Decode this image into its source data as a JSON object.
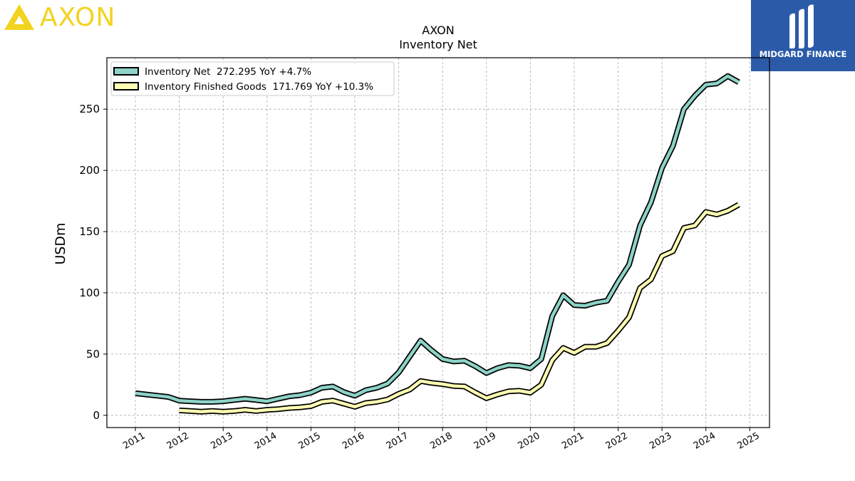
{
  "brand": {
    "left_logo_text": "AXON",
    "right_logo_text": "MIDGARD FINANCE",
    "left_color": "#f2d31f",
    "right_bg": "#2b5ba8"
  },
  "chart_data": {
    "type": "line",
    "title": "AXON",
    "subtitle": "Inventory Net",
    "ylabel": "USDm",
    "xlabel": "",
    "ylim": [
      -10,
      292
    ],
    "xlim": [
      2010.35,
      2025.45
    ],
    "y_ticks": [
      0,
      50,
      100,
      150,
      200,
      250
    ],
    "x_ticks": [
      "2011",
      "2012",
      "2013",
      "2014",
      "2015",
      "2016",
      "2017",
      "2018",
      "2019",
      "2020",
      "2021",
      "2022",
      "2023",
      "2024",
      "2025"
    ],
    "grid": true,
    "legend_position": "top-left",
    "series": [
      {
        "name": "Inventory Net  272.295 YoY +4.7%",
        "color": "#8dd3c7",
        "x": [
          2011.0,
          2011.25,
          2011.5,
          2011.75,
          2012.0,
          2012.25,
          2012.5,
          2012.75,
          2013.0,
          2013.25,
          2013.5,
          2013.75,
          2014.0,
          2014.25,
          2014.5,
          2014.75,
          2015.0,
          2015.25,
          2015.5,
          2015.75,
          2016.0,
          2016.25,
          2016.5,
          2016.75,
          2017.0,
          2017.25,
          2017.5,
          2017.75,
          2018.0,
          2018.25,
          2018.5,
          2018.75,
          2019.0,
          2019.25,
          2019.5,
          2019.75,
          2020.0,
          2020.25,
          2020.5,
          2020.75,
          2021.0,
          2021.25,
          2021.5,
          2021.75,
          2022.0,
          2022.25,
          2022.5,
          2022.75,
          2023.0,
          2023.25,
          2023.5,
          2023.75,
          2024.0,
          2024.25,
          2024.5,
          2024.75
        ],
        "values": [
          18,
          17,
          16,
          15,
          12,
          11.5,
          11,
          11,
          11.5,
          12.5,
          13.5,
          12.5,
          11.5,
          13.5,
          15.5,
          16.5,
          18.5,
          22.5,
          23.5,
          19,
          16,
          20.5,
          22.5,
          26,
          35,
          48,
          61,
          53,
          46,
          44,
          44.5,
          40,
          34.5,
          38.5,
          41,
          40.5,
          38.5,
          46,
          81,
          98,
          90,
          89.5,
          92,
          93.5,
          109,
          123,
          155,
          174,
          202,
          220,
          250,
          261,
          270,
          271,
          277,
          272
        ]
      },
      {
        "name": "Inventory Finished Goods  171.769 YoY +10.3%",
        "color": "#ffffb3",
        "x": [
          2012.0,
          2012.25,
          2012.5,
          2012.75,
          2013.0,
          2013.25,
          2013.5,
          2013.75,
          2014.0,
          2014.25,
          2014.5,
          2014.75,
          2015.0,
          2015.25,
          2015.5,
          2015.75,
          2016.0,
          2016.25,
          2016.5,
          2016.75,
          2017.0,
          2017.25,
          2017.5,
          2017.75,
          2018.0,
          2018.25,
          2018.5,
          2018.75,
          2019.0,
          2019.25,
          2019.5,
          2019.75,
          2020.0,
          2020.25,
          2020.5,
          2020.75,
          2021.0,
          2021.25,
          2021.5,
          2021.75,
          2022.0,
          2022.25,
          2022.5,
          2022.75,
          2023.0,
          2023.25,
          2023.5,
          2023.75,
          2024.0,
          2024.25,
          2024.5,
          2024.75
        ],
        "values": [
          4,
          3.5,
          3,
          3.5,
          3,
          3.5,
          4.5,
          3.5,
          4.5,
          5,
          6,
          6.5,
          7.5,
          11,
          12,
          9.5,
          7,
          10,
          11,
          13,
          17.5,
          21,
          28,
          26.5,
          25.5,
          24,
          23.5,
          18.5,
          14,
          17,
          19.5,
          20,
          18.5,
          25,
          45,
          55,
          51,
          56,
          56,
          59,
          69,
          80,
          104,
          111,
          130,
          134,
          153,
          155,
          166,
          164,
          167,
          172
        ]
      }
    ]
  }
}
